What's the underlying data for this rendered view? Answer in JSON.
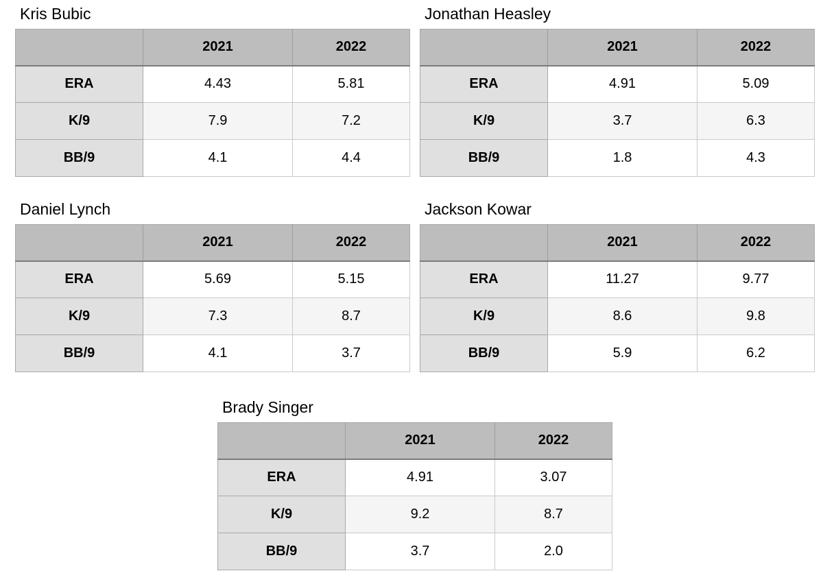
{
  "colors": {
    "page_background": "#ffffff",
    "header_bg": "#bdbdbd",
    "label_column_bg": "#e0e0e0",
    "alt_row_bg": "#f5f5f5",
    "row_bg": "#ffffff",
    "header_rule": "#7b7b7b",
    "grid_line": "#c9c9c9",
    "outer_border": "#a9a9a9",
    "text": "#000000"
  },
  "stat_labels": [
    "ERA",
    "K/9",
    "BB/9"
  ],
  "year_columns": [
    "2021",
    "2022"
  ],
  "chart_data": [
    {
      "type": "table",
      "title": "Kris Bubic",
      "columns": [
        "",
        "2021",
        "2022"
      ],
      "rows": [
        [
          "ERA",
          "4.43",
          "5.81"
        ],
        [
          "K/9",
          "7.9",
          "7.2"
        ],
        [
          "BB/9",
          "4.1",
          "4.4"
        ]
      ]
    },
    {
      "type": "table",
      "title": "Jonathan Heasley",
      "columns": [
        "",
        "2021",
        "2022"
      ],
      "rows": [
        [
          "ERA",
          "4.91",
          "5.09"
        ],
        [
          "K/9",
          "3.7",
          "6.3"
        ],
        [
          "BB/9",
          "1.8",
          "4.3"
        ]
      ]
    },
    {
      "type": "table",
      "title": "Daniel Lynch",
      "columns": [
        "",
        "2021",
        "2022"
      ],
      "rows": [
        [
          "ERA",
          "5.69",
          "5.15"
        ],
        [
          "K/9",
          "7.3",
          "8.7"
        ],
        [
          "BB/9",
          "4.1",
          "3.7"
        ]
      ]
    },
    {
      "type": "table",
      "title": "Jackson Kowar",
      "columns": [
        "",
        "2021",
        "2022"
      ],
      "rows": [
        [
          "ERA",
          "11.27",
          "9.77"
        ],
        [
          "K/9",
          "8.6",
          "9.8"
        ],
        [
          "BB/9",
          "5.9",
          "6.2"
        ]
      ]
    },
    {
      "type": "table",
      "title": "Brady Singer",
      "columns": [
        "",
        "2021",
        "2022"
      ],
      "rows": [
        [
          "ERA",
          "4.91",
          "3.07"
        ],
        [
          "K/9",
          "9.2",
          "8.7"
        ],
        [
          "BB/9",
          "3.7",
          "2.0"
        ]
      ]
    }
  ]
}
